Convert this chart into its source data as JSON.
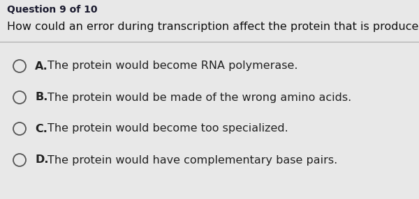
{
  "header": "Question 9 of 10",
  "question": "How could an error during transcription affect the protein that is produced?",
  "options": [
    {
      "letter": "A",
      "text": "The protein would become RNA polymerase."
    },
    {
      "letter": "B",
      "text": "The protein would be made of the wrong amino acids."
    },
    {
      "letter": "C",
      "text": "The protein would become too specialized."
    },
    {
      "letter": "D",
      "text": "The protein would have complementary base pairs."
    }
  ],
  "bg_color": "#e8e8e8",
  "header_color": "#1a1a2e",
  "question_color": "#111111",
  "option_color": "#222222",
  "header_fontsize": 10,
  "question_fontsize": 11.5,
  "option_fontsize": 11.5
}
